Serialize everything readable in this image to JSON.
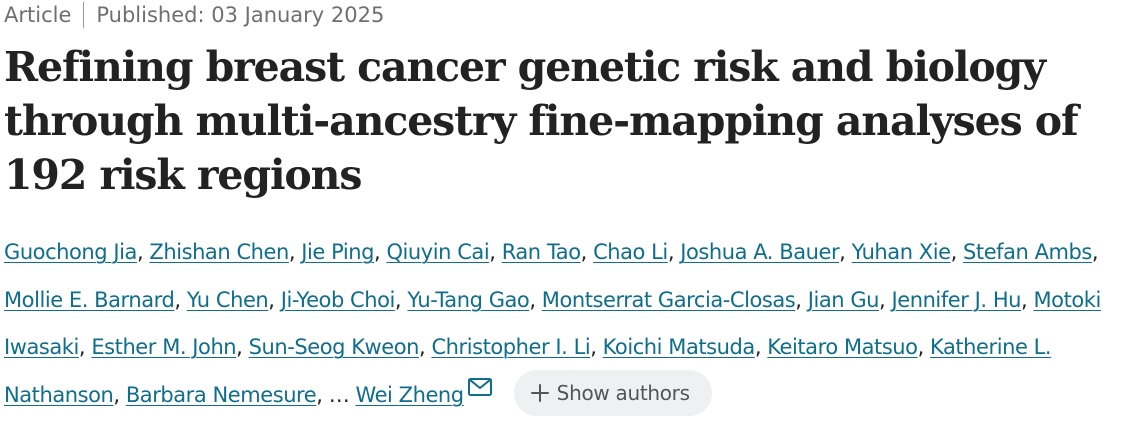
{
  "meta": {
    "article_type": "Article",
    "published": "Published: 03 January 2025"
  },
  "title": "Refining breast cancer genetic risk and biology through multi-ancestry fine-mapping analyses of 192 risk regions",
  "authors": [
    "Guochong Jia",
    "Zhishan Chen",
    "Jie Ping",
    "Qiuyin Cai",
    "Ran Tao",
    "Chao Li",
    "Joshua A. Bauer",
    "Yuhan Xie",
    "Stefan Ambs",
    "Mollie E. Barnard",
    "Yu Chen",
    "Ji-Yeob Choi",
    "Yu-Tang Gao",
    "Montserrat Garcia-Closas",
    "Jian Gu",
    "Jennifer J. Hu",
    "Motoki Iwasaki",
    "Esther M. John",
    "Sun-Seog Kweon",
    "Christopher I. Li",
    "Koichi Matsuda",
    "Keitaro Matsuo",
    "Katherine L. Nathanson",
    "Barbara Nemesure"
  ],
  "ellipsis": "…",
  "last_author": "Wei Zheng",
  "icons": {
    "corresponding": "envelope-icon",
    "expand": "plus-icon"
  },
  "show_authors_label": "Show authors",
  "colors": {
    "link": "#0e6e8c",
    "meta_text": "#6f6f6f",
    "button_bg": "#eef1f2"
  }
}
